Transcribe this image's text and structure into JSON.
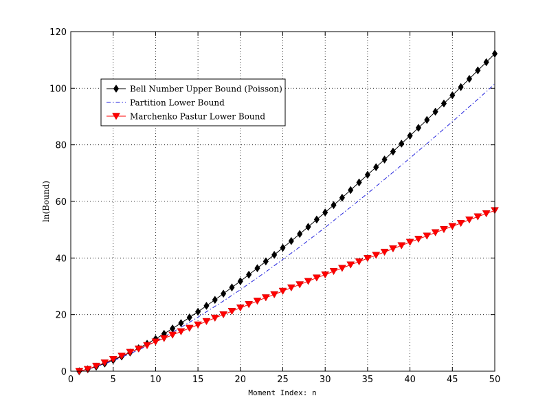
{
  "chart_data": {
    "type": "line",
    "title": "",
    "xlabel": "Moment Index: n",
    "ylabel": "ln(Bound)",
    "xlim": [
      0,
      50
    ],
    "ylim": [
      0,
      120
    ],
    "xticks": [
      0,
      5,
      10,
      15,
      20,
      25,
      30,
      35,
      40,
      45,
      50
    ],
    "yticks": [
      0,
      20,
      40,
      60,
      80,
      100,
      120
    ],
    "grid": true,
    "legend_position": "upper-left",
    "x": [
      1,
      2,
      3,
      4,
      5,
      6,
      7,
      8,
      9,
      10,
      11,
      12,
      13,
      14,
      15,
      16,
      17,
      18,
      19,
      20,
      21,
      22,
      23,
      24,
      25,
      26,
      27,
      28,
      29,
      30,
      31,
      32,
      33,
      34,
      35,
      36,
      37,
      38,
      39,
      40,
      41,
      42,
      43,
      44,
      45,
      46,
      47,
      48,
      49,
      50
    ],
    "series": [
      {
        "name": "Bell Number Upper Bound (Poisson)",
        "color": "#000000",
        "line_style": "solid",
        "marker": "diamond",
        "values": [
          0.0,
          0.7,
          1.6,
          2.7,
          3.9,
          5.2,
          6.6,
          8.1,
          9.7,
          11.4,
          13.2,
          15.1,
          17.0,
          19.0,
          21.0,
          23.1,
          25.2,
          27.4,
          29.6,
          31.8,
          34.1,
          36.4,
          38.8,
          41.1,
          43.6,
          46.0,
          48.5,
          51.0,
          53.6,
          56.1,
          58.7,
          61.3,
          64.0,
          66.7,
          69.4,
          72.1,
          74.8,
          77.6,
          80.4,
          83.2,
          86.0,
          88.8,
          91.7,
          94.6,
          97.5,
          100.4,
          103.3,
          106.3,
          109.2,
          112.2
        ]
      },
      {
        "name": "Partition Lower Bound",
        "color": "#2222dd",
        "line_style": "dashdot",
        "marker": "none",
        "values": [
          0.0,
          0.7,
          1.6,
          2.6,
          3.7,
          4.9,
          6.2,
          7.5,
          9.0,
          10.5,
          12.1,
          13.8,
          15.5,
          17.3,
          19.1,
          21.0,
          22.9,
          24.8,
          26.8,
          28.8,
          30.9,
          33.0,
          35.1,
          37.3,
          39.5,
          41.7,
          43.9,
          46.2,
          48.5,
          50.8,
          53.2,
          55.6,
          58.0,
          60.4,
          62.8,
          65.3,
          67.8,
          70.3,
          72.8,
          75.3,
          77.9,
          80.4,
          83.0,
          85.6,
          88.2,
          90.8,
          93.5,
          96.1,
          98.8,
          101.5
        ]
      },
      {
        "name": "Marchenko Pastur Lower Bound",
        "color": "#ff0000",
        "line_style": "solid",
        "marker": "triangle-down",
        "values": [
          0.0,
          0.7,
          1.8,
          3.0,
          4.2,
          5.4,
          6.7,
          7.9,
          9.1,
          10.4,
          11.6,
          12.8,
          14.0,
          15.2,
          16.4,
          17.6,
          18.8,
          20.0,
          21.2,
          22.4,
          23.6,
          24.8,
          26.0,
          27.1,
          28.3,
          29.5,
          30.6,
          31.8,
          33.0,
          34.1,
          35.3,
          36.4,
          37.6,
          38.7,
          39.9,
          41.0,
          42.1,
          43.3,
          44.4,
          45.6,
          46.7,
          47.8,
          49.0,
          50.1,
          51.2,
          52.3,
          53.5,
          54.6,
          55.7,
          56.8
        ]
      }
    ]
  }
}
